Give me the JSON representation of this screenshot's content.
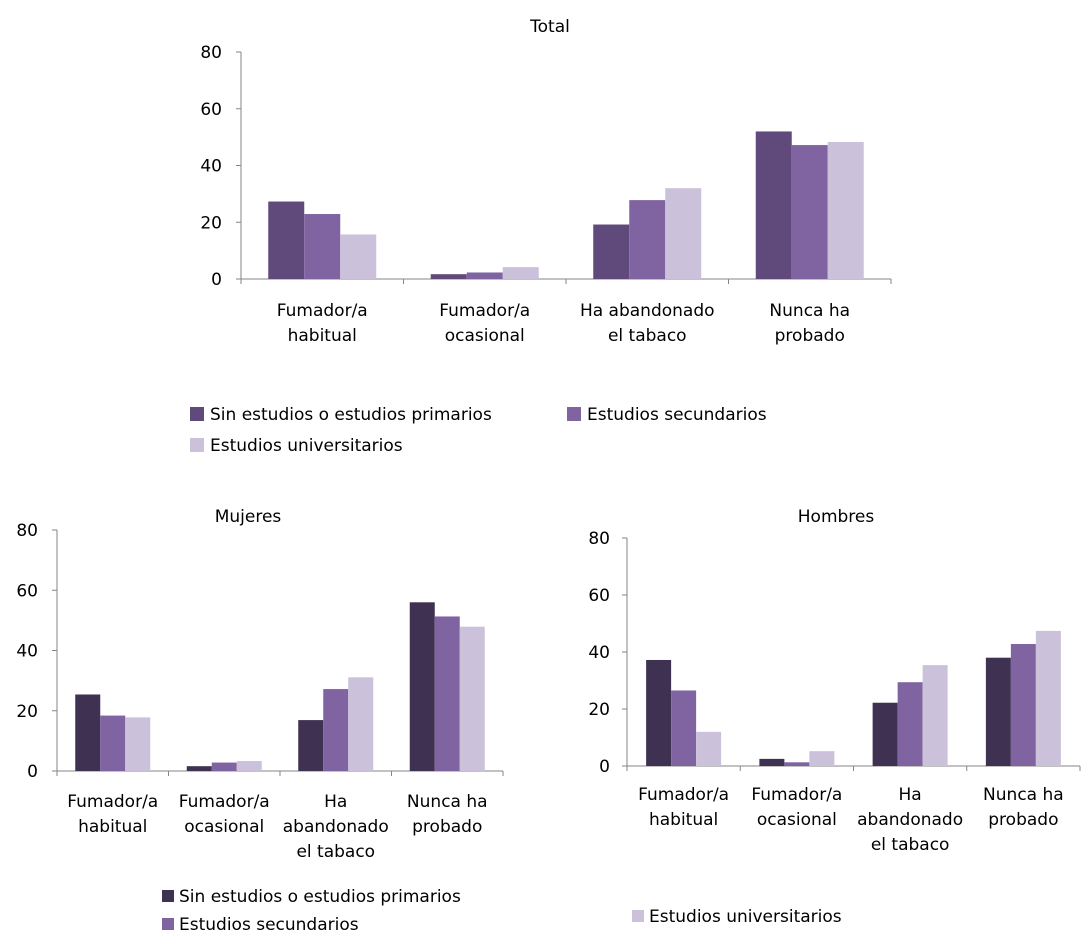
{
  "colors": {
    "s1_total": "#604a7b",
    "s2_total": "#8064a2",
    "s3": "#ccc1da",
    "s1_sub": "#3f3151",
    "s2_sub": "#8064a2",
    "axis": "#868686"
  },
  "legend": {
    "s1": "Sin estudios o estudios primarios",
    "s2": "Estudios secundarios",
    "s3": "Estudios universitarios"
  },
  "chart_data": [
    {
      "type": "bar",
      "title": "Total",
      "categories": [
        "Fumador/a habitual",
        "Fumador/a ocasional",
        "Ha abandonado el tabaco",
        "Nunca ha probado"
      ],
      "ylim": [
        0,
        80
      ],
      "yticks": [
        0,
        20,
        40,
        60,
        80
      ],
      "series": [
        {
          "name": "Sin estudios o estudios primarios",
          "values": [
            27.3,
            1.7,
            19.2,
            52.0
          ]
        },
        {
          "name": "Estudios secundarios",
          "values": [
            22.9,
            2.3,
            27.8,
            47.2
          ]
        },
        {
          "name": "Estudios universitarios",
          "values": [
            15.7,
            4.2,
            32.0,
            48.3
          ]
        }
      ],
      "legend_position": "bottom"
    },
    {
      "type": "bar",
      "title": "Mujeres",
      "categories": [
        "Fumador/a habitual",
        "Fumador/a ocasional",
        "Ha abandonado el tabaco",
        "Nunca ha probado"
      ],
      "ylim": [
        0,
        80
      ],
      "yticks": [
        0,
        20,
        40,
        60,
        80
      ],
      "series": [
        {
          "name": "Sin estudios o estudios primarios",
          "values": [
            25.4,
            1.6,
            16.9,
            56.0
          ]
        },
        {
          "name": "Estudios secundarios",
          "values": [
            18.4,
            2.8,
            27.2,
            51.3
          ]
        },
        {
          "name": "Estudios universitarios",
          "values": [
            17.8,
            3.3,
            31.1,
            47.9
          ]
        }
      ],
      "legend_position": "bottom"
    },
    {
      "type": "bar",
      "title": "Hombres",
      "categories": [
        "Fumador/a habitual",
        "Fumador/a ocasional",
        "Ha abandonado el tabaco",
        "Nunca ha probado"
      ],
      "ylim": [
        0,
        80
      ],
      "yticks": [
        0,
        20,
        40,
        60,
        80
      ],
      "series": [
        {
          "name": "Sin estudios o estudios primarios",
          "values": [
            37.2,
            2.5,
            22.2,
            38.0
          ]
        },
        {
          "name": "Estudios secundarios",
          "values": [
            26.5,
            1.3,
            29.4,
            42.8
          ]
        },
        {
          "name": "Estudios universitarios",
          "values": [
            12.0,
            5.2,
            35.4,
            47.4
          ]
        }
      ],
      "legend_position": "bottom"
    }
  ]
}
